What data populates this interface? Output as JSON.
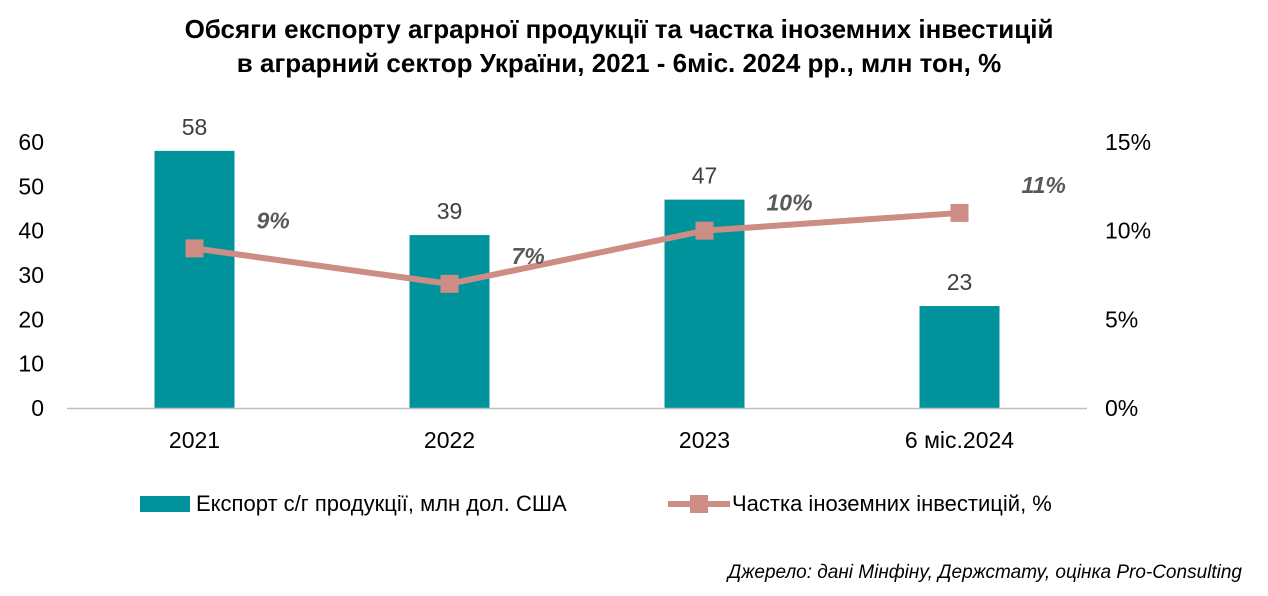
{
  "title": {
    "line1": "Обсяги експорту аграрної продукції та частка іноземних інвестицій",
    "line2": "в аграрний сектор України, 2021 - 6міс. 2024 рр., млн тон, %"
  },
  "colors": {
    "bar": "#00939C",
    "line": "#CD8C84",
    "axis": "#BFBFBF",
    "label": "#404040",
    "pct_label": "#595959"
  },
  "chart_data": {
    "type": "bar",
    "title": "Обсяги експорту аграрної продукції та частка іноземних інвестицій в аграрний сектор України, 2021 - 6міс. 2024 рр., млн тон, %",
    "categories": [
      "2021",
      "2022",
      "2023",
      "6 міс.2024"
    ],
    "series": [
      {
        "name": "Експорт с/г продукції, млн дол. США",
        "type": "bar",
        "axis": "left",
        "values": [
          58,
          39,
          47,
          23
        ],
        "labels": [
          "58",
          "39",
          "47",
          "23"
        ]
      },
      {
        "name": "Частка іноземних інвестицій, %",
        "type": "line",
        "axis": "right",
        "values": [
          9,
          7,
          10,
          11
        ],
        "labels": [
          "9%",
          "7%",
          "10%",
          "11%"
        ]
      }
    ],
    "y_left": {
      "min": 0,
      "max": 60,
      "ticks": [
        "0",
        "10",
        "20",
        "30",
        "40",
        "50",
        "60"
      ]
    },
    "y_right": {
      "min": 0,
      "max": 15,
      "ticks": [
        "0%",
        "5%",
        "10%",
        "15%"
      ]
    },
    "grid": false,
    "legend_position": "bottom"
  },
  "legend": {
    "bar_label": "Експорт с/г продукції, млн дол. США",
    "line_label": "Частка іноземних інвестицій, %"
  },
  "source": "Джерело: дані Мінфіну, Держстату, оцінка Pro-Consulting"
}
